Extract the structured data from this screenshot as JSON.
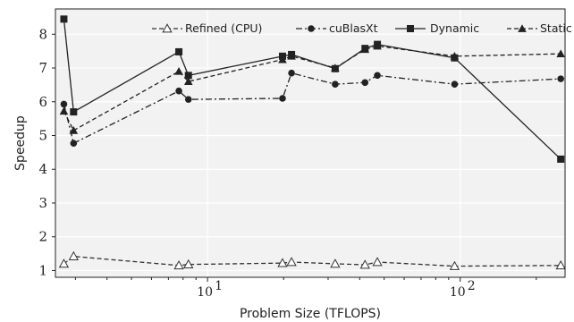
{
  "chart_data": {
    "type": "line",
    "xlabel": "Problem Size (TFLOPS)",
    "ylabel": "Speedup",
    "xscale": "log",
    "xlim": [
      2.5,
      260
    ],
    "ylim": [
      0.8,
      8.75
    ],
    "yticks": [
      "1",
      "2",
      "3",
      "4",
      "5",
      "6",
      "7",
      "8"
    ],
    "xticks": [
      {
        "value": 10,
        "base": "10",
        "exp": "1"
      },
      {
        "value": 100,
        "base": "10",
        "exp": "2"
      }
    ],
    "grid": true,
    "legend_position": "top-right",
    "series": [
      {
        "name": "Refined (CPU)",
        "style": "dashed",
        "marker": "triangle-open",
        "color": "#333333",
        "x": [
          2.7,
          2.95,
          7.7,
          8.4,
          19.8,
          21.5,
          32,
          42,
          47,
          95,
          250
        ],
        "y": [
          1.2,
          1.42,
          1.15,
          1.18,
          1.22,
          1.25,
          1.2,
          1.17,
          1.25,
          1.13,
          1.15
        ]
      },
      {
        "name": "cuBlasXt",
        "style": "dashdot",
        "marker": "circle",
        "color": "#222222",
        "x": [
          2.7,
          2.95,
          7.7,
          8.4,
          19.8,
          21.5,
          32,
          42,
          47,
          95,
          250
        ],
        "y": [
          5.93,
          4.77,
          6.32,
          6.07,
          6.1,
          6.85,
          6.52,
          6.57,
          6.78,
          6.52,
          6.68
        ]
      },
      {
        "name": "Dynamic",
        "style": "solid",
        "marker": "square",
        "color": "#222222",
        "x": [
          2.7,
          2.95,
          7.7,
          8.4,
          19.8,
          21.5,
          32,
          42,
          47,
          95,
          250
        ],
        "y": [
          8.45,
          5.7,
          7.48,
          6.78,
          7.35,
          7.4,
          6.98,
          7.58,
          7.7,
          7.3,
          4.3
        ]
      },
      {
        "name": "Static",
        "style": "dashed",
        "marker": "triangle",
        "color": "#222222",
        "x": [
          2.7,
          2.95,
          7.7,
          8.4,
          19.8,
          21.5,
          32,
          42,
          47,
          95,
          250
        ],
        "y": [
          5.72,
          5.15,
          6.9,
          6.6,
          7.25,
          7.35,
          7.0,
          7.55,
          7.65,
          7.35,
          7.42
        ]
      }
    ]
  }
}
